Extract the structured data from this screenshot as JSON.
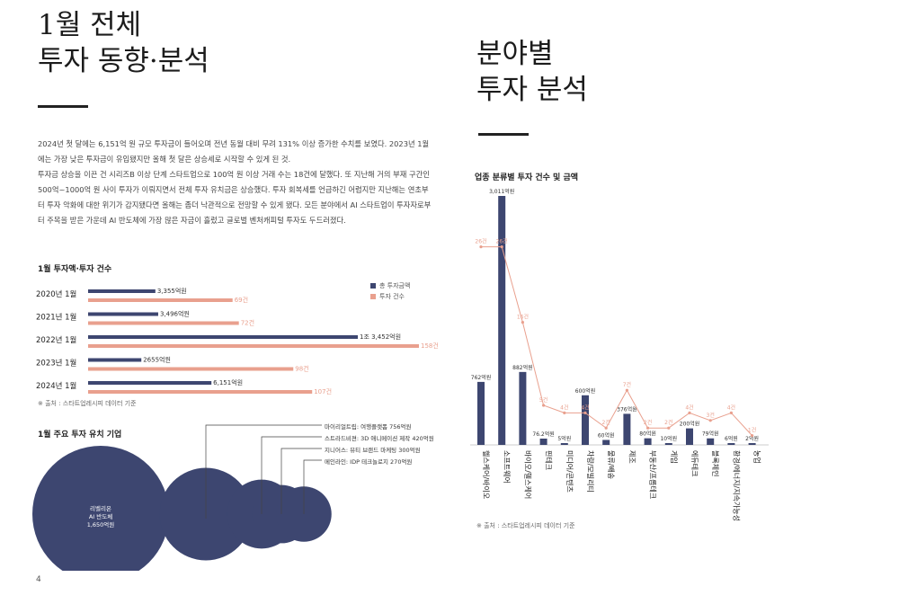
{
  "left": {
    "title_line1": "1월 전체",
    "title_line2": "투자 동향·분석",
    "paragraphs": [
      "2024년 첫 달에는 6,151억 원 규모 투자금이 들어오며 전년 동월 대비 무려 131% 이상 증가한 수치를 보였다. 2023년 1월에는 가장 낮은 투자금이 유입됐지만 올해 첫 달은 상승세로 시작할 수 있게 된 것.",
      "투자금 상승을 이끈 건 시리즈B 이상 단계 스타트업으로 100억 원 이상 거래 수는 18건에 달했다. 또 지난해 거의 부재 구간인 500억~1000억 원 사이 투자가 이뤄지면서 전체 투자 유치금은 상승했다. 투자 회복세를 언급하긴 어렵지만 지난해는 연초부터 투자 악화에 대한 위기가 감지됐다면 올해는 좀더 낙관적으로 전망할 수 있게 됐다. 모든 분야에서 AI 스타트업이 투자자로부터 주목을 받은 가운데 AI 반도체에 가장 많은 자금이 흘렀고 글로벌 벤처캐피털 투자도 두드러졌다."
    ],
    "annual_chart": {
      "heading": "1월 투자액·투자 건수",
      "legend": {
        "amount": "총 투자금액",
        "count": "투자 건수"
      },
      "colors": {
        "amount": "#3d4670",
        "count": "#e9a08e"
      },
      "source": "※ 출처 : 스타트업레시피 데이터 기준"
    },
    "companies": {
      "heading": "1월 주요 투자 유치 기업",
      "first_label": [
        "리벨리온",
        "AI 반도체",
        "1,650억원"
      ],
      "callouts": [
        "마이리얼트립: 여행플랫폼 756억원",
        "스트라드비젼: 3D 애니메이션 제작 420억원",
        "지니어스: 뷰티 브랜드 마케팅 300억원",
        "메인라인: IDP 테크놀로지 270억원"
      ],
      "bubble_color": "#3d4670"
    },
    "page_number": "4"
  },
  "right": {
    "title_line1": "분야별",
    "title_line2": "투자 분석",
    "chart_heading": "업종 분류별 투자 건수 및 금액",
    "source": "※ 출처 : 스타트업레시피 데이터 기준",
    "colors": {
      "bar": "#3d4670",
      "line": "#e9a08e"
    }
  },
  "chart_data": [
    {
      "type": "bar",
      "orientation": "horizontal",
      "title": "1월 투자액·투자 건수",
      "categories": [
        "2020년 1월",
        "2021년 1월",
        "2022년 1월",
        "2023년 1월",
        "2024년 1월"
      ],
      "series": [
        {
          "name": "총 투자금액",
          "values": [
            3355,
            3496,
            13452,
            2655,
            6151
          ],
          "labels": [
            "3,355억원",
            "3,496억원",
            "1조 3,452억원",
            "2655억원",
            "6,151억원"
          ]
        },
        {
          "name": "투자 건수",
          "values": [
            69,
            72,
            158,
            98,
            107
          ],
          "labels": [
            "69건",
            "72건",
            "158건",
            "98건",
            "107건"
          ]
        }
      ]
    },
    {
      "type": "bar",
      "title": "1월 주요 투자 유치 기업",
      "categories": [
        "리벨리온",
        "마이리얼트립",
        "스트라드비젼",
        "지니어스",
        "메인라인"
      ],
      "values": [
        1650,
        756,
        420,
        300,
        270
      ]
    },
    {
      "type": "bar+line",
      "title": "업종 분류별 투자 건수 및 금액",
      "categories": [
        "헬스케어/바이오",
        "소프트웨어",
        "바이오/헬스케어",
        "핀테크",
        "미디어/콘텐츠",
        "차량/모빌리티",
        "물류/배송",
        "제조",
        "부동산/프롭테크",
        "게임",
        "에듀테크",
        "블록체인",
        "환경/에너지/지속가능성",
        "농업"
      ],
      "series": [
        {
          "name": "투자금액",
          "values": [
            762,
            3011,
            882,
            76.2,
            5,
            600,
            60,
            376,
            80,
            10,
            200,
            79,
            6,
            2
          ],
          "labels": [
            "762억원",
            "3,011억원",
            "882억원",
            "76.2억원",
            "5억원",
            "600억원",
            "60억원",
            "376억원",
            "80억원",
            "10억원",
            "200억원",
            "79억원",
            "6억원",
            "2억원"
          ]
        },
        {
          "name": "투자 건수",
          "values": [
            26,
            26,
            16,
            5,
            4,
            4,
            2,
            7,
            2,
            2,
            4,
            3,
            4,
            1
          ],
          "labels": [
            "26건",
            "26건",
            "16건",
            "5건",
            "4건",
            "4건",
            "2건",
            "7건",
            "2건",
            "2건",
            "4건",
            "3건",
            "4건",
            "1건"
          ]
        }
      ]
    }
  ]
}
